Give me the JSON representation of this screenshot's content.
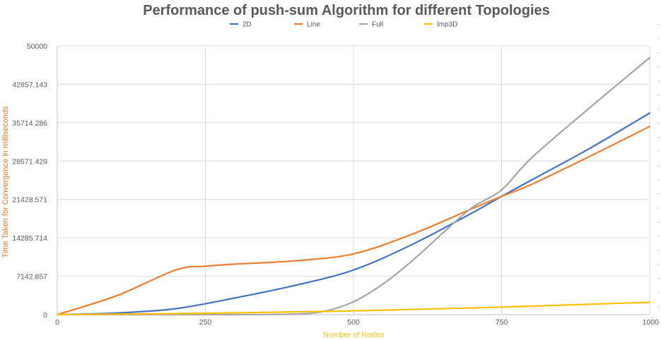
{
  "chart_data": {
    "type": "line",
    "title": "Performance of push-sum Algorithm for different Topologies",
    "xlabel": "Number of Nodes",
    "ylabel": "Time Taken for Convergence in milliseconds",
    "xlim": [
      0,
      1000
    ],
    "ylim": [
      0,
      50000
    ],
    "x_ticks": [
      0,
      250,
      500,
      750,
      1000
    ],
    "x_tick_labels": [
      "0",
      "250",
      "500",
      "750",
      "1000"
    ],
    "y_ticks": [
      0,
      7142.857,
      14285.714,
      21428.571,
      28571.429,
      35714.286,
      42857.143,
      50000
    ],
    "y_tick_labels": [
      "0",
      "7142.857",
      "14285.714",
      "21428.571",
      "28571.429",
      "35714.286",
      "42857.143",
      "50000"
    ],
    "grid": true,
    "legend_position": "top",
    "series": [
      {
        "name": "2D",
        "color": "#4472C4",
        "x": [
          0,
          100,
          200,
          300,
          400,
          500,
          600,
          700,
          750,
          800,
          900,
          1000
        ],
        "y": [
          0,
          300,
          1100,
          3100,
          5400,
          8300,
          13100,
          18900,
          22000,
          25000,
          31000,
          37500
        ]
      },
      {
        "name": "Line",
        "color": "#ED7D31",
        "x": [
          0,
          100,
          200,
          250,
          300,
          400,
          500,
          600,
          700,
          750,
          800,
          900,
          1000
        ],
        "y": [
          0,
          3500,
          8300,
          9000,
          9400,
          10000,
          11300,
          15000,
          19700,
          22000,
          24200,
          29500,
          35000
        ]
      },
      {
        "name": "Full",
        "color": "#A5A5A5",
        "x": [
          0,
          200,
          300,
          400,
          450,
          500,
          550,
          600,
          650,
          700,
          750,
          800,
          900,
          1000
        ],
        "y": [
          0,
          0,
          0,
          100,
          600,
          2400,
          5700,
          10100,
          15100,
          19900,
          23200,
          29100,
          38600,
          47800
        ]
      },
      {
        "name": "Imp3D",
        "color": "#FFC000",
        "x": [
          0,
          250,
          500,
          750,
          1000
        ],
        "y": [
          0,
          250,
          700,
          1400,
          2300
        ]
      }
    ]
  }
}
